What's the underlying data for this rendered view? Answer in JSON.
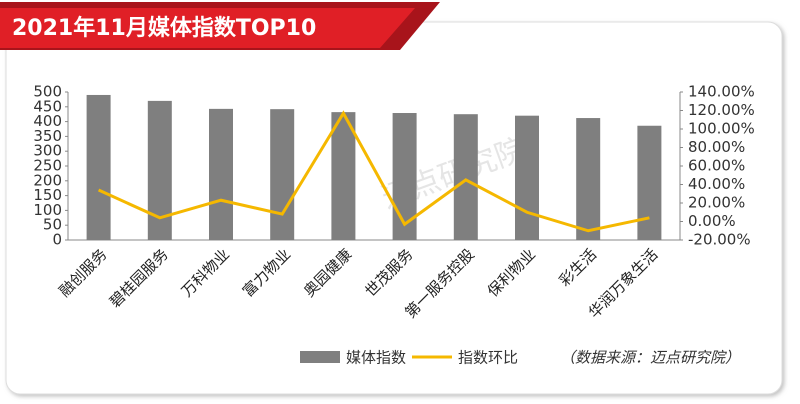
{
  "chart_data": {
    "type": "bar-line",
    "title": "2021年11月媒体指数TOP10",
    "watermark": "迈点研究院",
    "source": "（数据来源：迈点研究院）",
    "categories": [
      "融创服务",
      "碧桂园服务",
      "万科物业",
      "富力物业",
      "奥园健康",
      "世茂服务",
      "第一服务控股",
      "保利物业",
      "彩生活",
      "华润万象生活"
    ],
    "series": [
      {
        "name": "媒体指数",
        "color": "#7f7f7f",
        "type": "bar",
        "values": [
          490,
          470,
          443,
          442,
          432,
          429,
          425,
          420,
          412,
          386
        ]
      },
      {
        "name": "指数环比",
        "color": "#f5b800",
        "type": "line",
        "axis": "y2",
        "values": [
          34,
          4,
          23,
          8,
          117,
          -3,
          45,
          10,
          -10,
          4
        ]
      }
    ],
    "ylim": [
      0,
      500
    ],
    "yticks": [
      0,
      50,
      100,
      150,
      200,
      250,
      300,
      350,
      400,
      450,
      500
    ],
    "y2lim": [
      -20,
      140
    ],
    "y2ticks": [
      {
        "value": -20,
        "label": "-20.00%"
      },
      {
        "value": 0,
        "label": "0.00%"
      },
      {
        "value": 20,
        "label": "20.00%"
      },
      {
        "value": 40,
        "label": "40.00%"
      },
      {
        "value": 60,
        "label": "60.00%"
      },
      {
        "value": 80,
        "label": "80.00%"
      },
      {
        "value": 100,
        "label": "100.00%"
      },
      {
        "value": 120,
        "label": "120.00%"
      },
      {
        "value": 140,
        "label": "140.00%"
      }
    ],
    "legend": "bottom"
  }
}
